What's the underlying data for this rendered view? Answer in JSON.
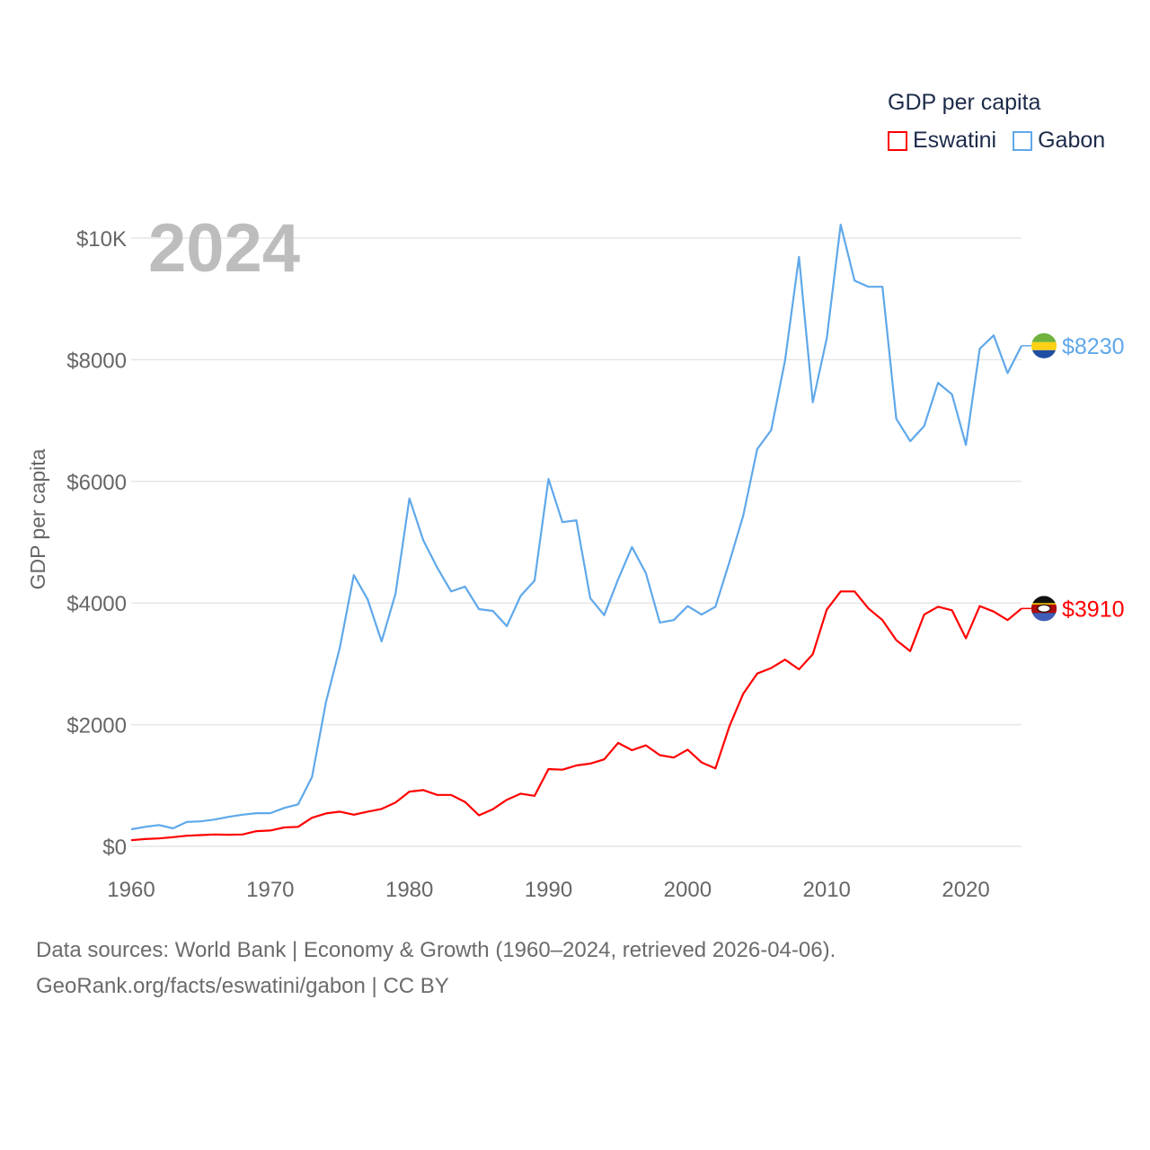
{
  "chart_data": {
    "type": "line",
    "title": "GDP per capita",
    "year_watermark": "2024",
    "ylabel": "GDP per capita",
    "xlabel": "",
    "xlim": [
      1960,
      2024
    ],
    "ylim": [
      0,
      10000
    ],
    "grid": true,
    "legend_placement": "top-right",
    "y_ticks": [
      {
        "v": 0,
        "label": "$0"
      },
      {
        "v": 2000,
        "label": "$2000"
      },
      {
        "v": 4000,
        "label": "$4000"
      },
      {
        "v": 6000,
        "label": "$6000"
      },
      {
        "v": 8000,
        "label": "$8000"
      },
      {
        "v": 10000,
        "label": "$10K"
      }
    ],
    "x_ticks": [
      {
        "v": 1960,
        "label": "1960"
      },
      {
        "v": 1970,
        "label": "1970"
      },
      {
        "v": 1980,
        "label": "1980"
      },
      {
        "v": 1990,
        "label": "1990"
      },
      {
        "v": 2000,
        "label": "2000"
      },
      {
        "v": 2010,
        "label": "2010"
      },
      {
        "v": 2020,
        "label": "2020"
      }
    ],
    "x_start": 1960,
    "series": [
      {
        "name": "Eswatini",
        "color": "#ff0000",
        "end_label": "$3910",
        "flag": "eswatini-flag",
        "values": [
          100,
          120,
          130,
          150,
          175,
          185,
          195,
          190,
          195,
          250,
          260,
          310,
          320,
          470,
          540,
          570,
          520,
          570,
          615,
          720,
          900,
          925,
          845,
          845,
          730,
          510,
          610,
          765,
          865,
          830,
          1270,
          1260,
          1330,
          1360,
          1430,
          1700,
          1580,
          1660,
          1500,
          1460,
          1590,
          1380,
          1280,
          1970,
          2510,
          2840,
          2930,
          3070,
          2910,
          3160,
          3890,
          4190,
          4190,
          3910,
          3720,
          3390,
          3210,
          3810,
          3940,
          3880,
          3420,
          3950,
          3860,
          3720,
          3910
        ]
      },
      {
        "name": "Gabon",
        "color": "#5fa8ea",
        "end_label": "$8230",
        "flag": "gabon-flag",
        "values": [
          280,
          320,
          350,
          295,
          400,
          410,
          440,
          485,
          520,
          545,
          545,
          630,
          690,
          1140,
          2370,
          3270,
          4460,
          4060,
          3370,
          4150,
          5720,
          5030,
          4580,
          4190,
          4270,
          3900,
          3870,
          3620,
          4120,
          4370,
          6040,
          5330,
          5360,
          4080,
          3800,
          4390,
          4920,
          4490,
          3680,
          3720,
          3950,
          3810,
          3940,
          4670,
          5440,
          6530,
          6840,
          7990,
          9690,
          7300,
          8350,
          10220,
          9300,
          9200,
          9200,
          7030,
          6660,
          6910,
          7620,
          7430,
          6600,
          8180,
          8400,
          7780,
          8230
        ]
      }
    ]
  },
  "footer": {
    "line1": "Data sources: World Bank | Economy & Growth (1960–2024, retrieved 2026-04-06).",
    "line2": "GeoRank.org/facts/eswatini/gabon | CC BY"
  }
}
